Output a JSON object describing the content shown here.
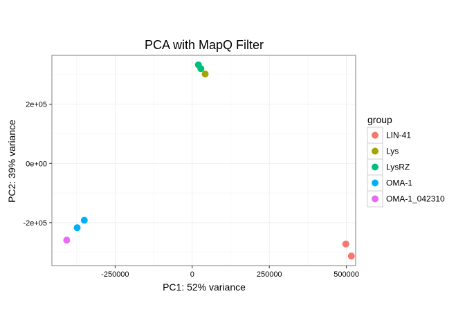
{
  "chart_data": {
    "type": "scatter",
    "title": "PCA with MapQ Filter",
    "xlabel": "PC1: 52% variance",
    "ylabel": "PC2: 39% variance",
    "xlim": [
      -455000,
      530000
    ],
    "ylim": [
      -345000,
      365000
    ],
    "x_ticks": [
      -250000,
      0,
      250000,
      500000
    ],
    "x_tick_labels": [
      "-250000",
      "0",
      "250000",
      "500000"
    ],
    "y_ticks": [
      -200000,
      0,
      200000
    ],
    "y_tick_labels": [
      "-2e+05",
      "0e+00",
      "2e+05"
    ],
    "grid": true,
    "legend": {
      "title": "group",
      "position": "right"
    },
    "series": [
      {
        "name": "LIN-41",
        "color": "#F8766D",
        "points": [
          [
            498000,
            -272000
          ],
          [
            516000,
            -313000
          ]
        ]
      },
      {
        "name": "Lys",
        "color": "#A3A500",
        "points": [
          [
            42000,
            302000
          ]
        ]
      },
      {
        "name": "LysRZ",
        "color": "#00BF7D",
        "points": [
          [
            20000,
            333000
          ],
          [
            28000,
            320000
          ]
        ]
      },
      {
        "name": "OMA-1",
        "color": "#00B0F6",
        "points": [
          [
            -350000,
            -192000
          ],
          [
            -373000,
            -217000
          ]
        ]
      },
      {
        "name": "OMA-1_042310",
        "color": "#E76BF3",
        "points": [
          [
            -407000,
            -259000
          ]
        ]
      }
    ]
  }
}
